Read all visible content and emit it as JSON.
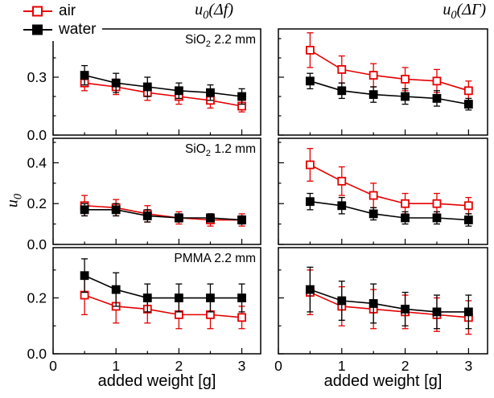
{
  "chart_data": {
    "type": "line",
    "x": [
      0.5,
      1.0,
      1.5,
      2.0,
      2.5,
      3.0
    ],
    "xlim": [
      0,
      3.3
    ],
    "xticks": [
      0,
      1,
      2,
      3
    ],
    "xminor": 0.5,
    "yminor": 0.1,
    "xlabel": "added weight [g]",
    "ylabel": {
      "pre": "u",
      "sub": "0",
      "post": ""
    },
    "column_titles": [
      {
        "pre": "u",
        "sub": "0",
        "post": "(Δf)"
      },
      {
        "pre": "u",
        "sub": "0",
        "post": "(ΔΓ)"
      }
    ],
    "legend": [
      {
        "key": "air",
        "label": "air",
        "marker": "open"
      },
      {
        "key": "water",
        "label": "water",
        "marker": "filled"
      }
    ],
    "colors": {
      "air": "#e50000",
      "water": "#000000"
    },
    "panels": [
      {
        "id": "u0-df-sio2-2.2mm",
        "label": {
          "pre": "SiO",
          "sub": "2",
          "post": " 2.2 mm"
        },
        "ylim": [
          0,
          0.55
        ],
        "yticks": [
          0.0,
          0.3
        ],
        "series": [
          {
            "key": "air",
            "values": [
              0.27,
              0.25,
              0.22,
              0.2,
              0.18,
              0.15
            ],
            "err": [
              0.04,
              0.04,
              0.04,
              0.04,
              0.04,
              0.03
            ]
          },
          {
            "key": "water",
            "values": [
              0.31,
              0.27,
              0.25,
              0.23,
              0.22,
              0.2
            ],
            "err": [
              0.05,
              0.05,
              0.05,
              0.04,
              0.04,
              0.04
            ]
          }
        ]
      },
      {
        "id": "u0-dgamma-sio2-2.2mm",
        "label": null,
        "ylim": [
          0,
          0.55
        ],
        "yticks": [
          0.0,
          0.3
        ],
        "series": [
          {
            "key": "air",
            "values": [
              0.44,
              0.34,
              0.31,
              0.29,
              0.28,
              0.23
            ],
            "err": [
              0.09,
              0.07,
              0.06,
              0.06,
              0.06,
              0.05
            ]
          },
          {
            "key": "water",
            "values": [
              0.28,
              0.23,
              0.21,
              0.2,
              0.19,
              0.16
            ],
            "err": [
              0.04,
              0.04,
              0.04,
              0.04,
              0.04,
              0.03
            ]
          }
        ]
      },
      {
        "id": "u0-df-sio2-1.2mm",
        "label": {
          "pre": "SiO",
          "sub": "2",
          "post": " 1.2 mm"
        },
        "ylim": [
          0,
          0.52
        ],
        "yticks": [
          0.0,
          0.2,
          0.4
        ],
        "series": [
          {
            "key": "air",
            "values": [
              0.19,
              0.18,
              0.15,
              0.13,
              0.12,
              0.12
            ],
            "err": [
              0.05,
              0.04,
              0.04,
              0.03,
              0.03,
              0.03
            ]
          },
          {
            "key": "water",
            "values": [
              0.17,
              0.17,
              0.14,
              0.13,
              0.13,
              0.12
            ],
            "err": [
              0.03,
              0.03,
              0.03,
              0.02,
              0.02,
              0.02
            ]
          }
        ]
      },
      {
        "id": "u0-dgamma-sio2-1.2mm",
        "label": null,
        "ylim": [
          0,
          0.52
        ],
        "yticks": [
          0.0,
          0.2,
          0.4
        ],
        "series": [
          {
            "key": "air",
            "values": [
              0.39,
              0.31,
              0.24,
              0.2,
              0.2,
              0.19
            ],
            "err": [
              0.08,
              0.07,
              0.06,
              0.05,
              0.05,
              0.04
            ]
          },
          {
            "key": "water",
            "values": [
              0.21,
              0.19,
              0.15,
              0.13,
              0.13,
              0.12
            ],
            "err": [
              0.04,
              0.04,
              0.03,
              0.03,
              0.03,
              0.03
            ]
          }
        ]
      },
      {
        "id": "u0-df-pmma-2.2mm",
        "label": {
          "pre": "PMMA 2.2 mm",
          "sub": "",
          "post": ""
        },
        "ylim": [
          0,
          0.38
        ],
        "yticks": [
          0.0,
          0.2
        ],
        "series": [
          {
            "key": "air",
            "values": [
              0.21,
              0.17,
              0.16,
              0.14,
              0.14,
              0.13
            ],
            "err": [
              0.07,
              0.06,
              0.05,
              0.05,
              0.05,
              0.04
            ]
          },
          {
            "key": "water",
            "values": [
              0.28,
              0.23,
              0.2,
              0.2,
              0.2,
              0.2
            ],
            "err": [
              0.06,
              0.06,
              0.05,
              0.05,
              0.05,
              0.05
            ]
          }
        ]
      },
      {
        "id": "u0-dgamma-pmma-2.2mm",
        "label": null,
        "ylim": [
          0,
          0.38
        ],
        "yticks": [
          0.0,
          0.2
        ],
        "series": [
          {
            "key": "air",
            "values": [
              0.22,
              0.17,
              0.16,
              0.15,
              0.14,
              0.13
            ],
            "err": [
              0.08,
              0.07,
              0.07,
              0.06,
              0.06,
              0.06
            ]
          },
          {
            "key": "water",
            "values": [
              0.23,
              0.19,
              0.18,
              0.16,
              0.15,
              0.15
            ],
            "err": [
              0.08,
              0.07,
              0.07,
              0.06,
              0.06,
              0.06
            ]
          }
        ]
      }
    ]
  }
}
